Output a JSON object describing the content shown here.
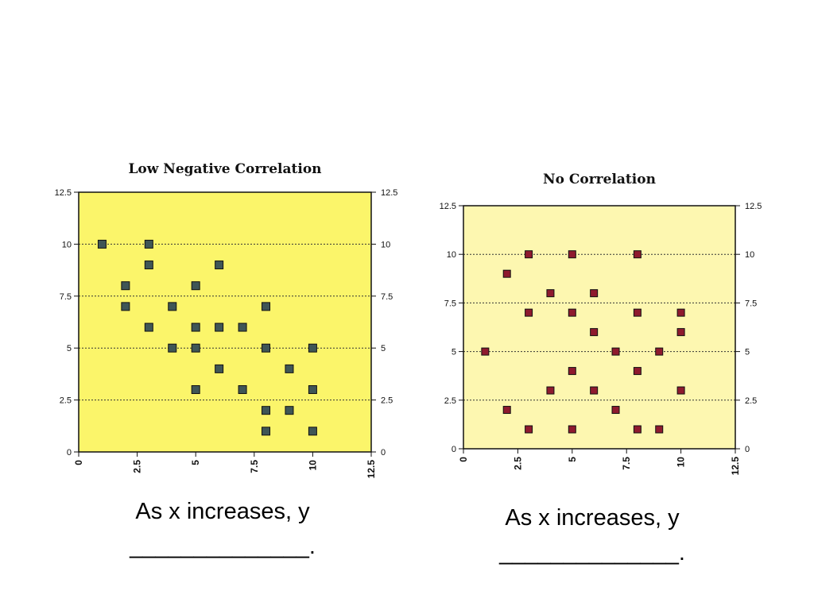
{
  "chart_data": [
    {
      "type": "scatter",
      "title": "Low Negative Correlation",
      "xlim": [
        0,
        12.5
      ],
      "ylim": [
        0,
        12.5
      ],
      "xticks": [
        "0",
        "2.5",
        "5",
        "7.5",
        "10",
        "12.5"
      ],
      "yticks": [
        "0",
        "2.5",
        "5",
        "7.5",
        "10",
        "12.5"
      ],
      "grid": "horizontal dotted",
      "background_color": "#fbf56a",
      "marker_color": "#3f5656",
      "points": [
        [
          1,
          10
        ],
        [
          3,
          10
        ],
        [
          3,
          9
        ],
        [
          6,
          9
        ],
        [
          2,
          8
        ],
        [
          5,
          8
        ],
        [
          2,
          7
        ],
        [
          4,
          7
        ],
        [
          8,
          7
        ],
        [
          3,
          6
        ],
        [
          5,
          6
        ],
        [
          6,
          6
        ],
        [
          7,
          6
        ],
        [
          4,
          5
        ],
        [
          5,
          5
        ],
        [
          8,
          5
        ],
        [
          10,
          5
        ],
        [
          6,
          4
        ],
        [
          9,
          4
        ],
        [
          5,
          3
        ],
        [
          7,
          3
        ],
        [
          10,
          3
        ],
        [
          8,
          2
        ],
        [
          9,
          2
        ],
        [
          8,
          1
        ],
        [
          10,
          1
        ]
      ]
    },
    {
      "type": "scatter",
      "title": "No Correlation",
      "xlim": [
        0,
        12.5
      ],
      "ylim": [
        0,
        12.5
      ],
      "xticks": [
        "0",
        "2.5",
        "5",
        "7.5",
        "10",
        "12.5"
      ],
      "yticks": [
        "0",
        "2.5",
        "5",
        "7.5",
        "10",
        "12.5"
      ],
      "grid": "horizontal dotted",
      "background_color": "#fdf7b0",
      "marker_color": "#8e1a2e",
      "points": [
        [
          3,
          10
        ],
        [
          5,
          10
        ],
        [
          8,
          10
        ],
        [
          2,
          9
        ],
        [
          4,
          8
        ],
        [
          6,
          8
        ],
        [
          3,
          7
        ],
        [
          5,
          7
        ],
        [
          8,
          7
        ],
        [
          10,
          7
        ],
        [
          6,
          6
        ],
        [
          10,
          6
        ],
        [
          1,
          5
        ],
        [
          7,
          5
        ],
        [
          9,
          5
        ],
        [
          5,
          4
        ],
        [
          8,
          4
        ],
        [
          4,
          3
        ],
        [
          6,
          3
        ],
        [
          10,
          3
        ],
        [
          2,
          2
        ],
        [
          7,
          2
        ],
        [
          3,
          1
        ],
        [
          5,
          1
        ],
        [
          8,
          1
        ],
        [
          9,
          1
        ]
      ]
    }
  ],
  "captions": [
    {
      "line1": "As x increases, y",
      "line2": "______________."
    },
    {
      "line1": "As x increases, y",
      "line2": "______________."
    }
  ]
}
